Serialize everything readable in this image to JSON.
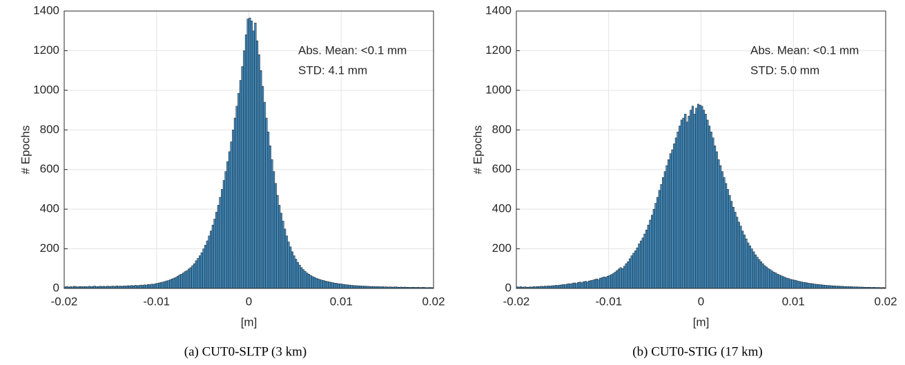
{
  "chart_data": [
    {
      "type": "histogram",
      "xlabel": "[m]",
      "ylabel": "# Epochs",
      "caption": "(a) CUT0-SLTP (3 km)",
      "annotations": [
        "Abs. Mean: <0.1 mm",
        "STD: 4.1 mm"
      ],
      "color": "#3f88bb",
      "edgecolor": "#1a1a1a",
      "grid": true,
      "xlim": [
        -0.02,
        0.02
      ],
      "xticks": [
        -0.02,
        -0.01,
        0,
        0.01,
        0.02
      ],
      "ylim": [
        0,
        1400
      ],
      "yticks": [
        0,
        200,
        400,
        600,
        800,
        1000,
        1200,
        1400
      ],
      "bins": [
        -0.02,
        -0.0198,
        -0.0196,
        -0.0194,
        -0.0192,
        -0.019,
        -0.0188,
        -0.0186,
        -0.0184,
        -0.0182,
        -0.018,
        -0.0178,
        -0.0176,
        -0.0174,
        -0.0172,
        -0.017,
        -0.0168,
        -0.0166,
        -0.0164,
        -0.0162,
        -0.016,
        -0.0158,
        -0.0156,
        -0.0154,
        -0.0152,
        -0.015,
        -0.0148,
        -0.0146,
        -0.0144,
        -0.0142,
        -0.014,
        -0.0138,
        -0.0136,
        -0.0134,
        -0.0132,
        -0.013,
        -0.0128,
        -0.0126,
        -0.0124,
        -0.0122,
        -0.012,
        -0.0118,
        -0.0116,
        -0.0114,
        -0.0112,
        -0.011,
        -0.0108,
        -0.0106,
        -0.0104,
        -0.0102,
        -0.01,
        -0.0098,
        -0.0096,
        -0.0094,
        -0.0092,
        -0.009,
        -0.0088,
        -0.0086,
        -0.0084,
        -0.0082,
        -0.008,
        -0.0078,
        -0.0076,
        -0.0074,
        -0.0072,
        -0.007,
        -0.0068,
        -0.0066,
        -0.0064,
        -0.0062,
        -0.006,
        -0.0058,
        -0.0056,
        -0.0054,
        -0.0052,
        -0.005,
        -0.0048,
        -0.0046,
        -0.0044,
        -0.0042,
        -0.004,
        -0.0038,
        -0.0036,
        -0.0034,
        -0.0032,
        -0.003,
        -0.0028,
        -0.0026,
        -0.0024,
        -0.0022,
        -0.002,
        -0.0018,
        -0.0016,
        -0.0014,
        -0.0012,
        -0.001,
        -0.0008,
        -0.0006,
        -0.0004,
        -0.0002,
        0,
        0.0002,
        0.0004,
        0.0006,
        0.0008,
        0.001,
        0.0012,
        0.0014,
        0.0016,
        0.0018,
        0.002,
        0.0022,
        0.0024,
        0.0026,
        0.0028,
        0.003,
        0.0032,
        0.0034,
        0.0036,
        0.0038,
        0.004,
        0.0042,
        0.0044,
        0.0046,
        0.0048,
        0.005,
        0.0052,
        0.0054,
        0.0056,
        0.0058,
        0.006,
        0.0062,
        0.0064,
        0.0066,
        0.0068,
        0.007,
        0.0072,
        0.0074,
        0.0076,
        0.0078,
        0.008,
        0.0082,
        0.0084,
        0.0086,
        0.0088,
        0.009,
        0.0092,
        0.0094,
        0.0096,
        0.0098,
        0.01,
        0.0102,
        0.0104,
        0.0106,
        0.0108,
        0.011,
        0.0112,
        0.0114,
        0.0116,
        0.0118,
        0.012,
        0.0122,
        0.0124,
        0.0126,
        0.0128,
        0.013,
        0.0132,
        0.0134,
        0.0136,
        0.0138,
        0.014,
        0.0142,
        0.0144,
        0.0146,
        0.0148,
        0.015,
        0.0152,
        0.0154,
        0.0156,
        0.0158,
        0.016,
        0.0162,
        0.0164,
        0.0166,
        0.0168,
        0.017,
        0.0172,
        0.0174,
        0.0176,
        0.0178,
        0.018,
        0.0182,
        0.0184,
        0.0186,
        0.0188,
        0.019,
        0.0192,
        0.0194,
        0.0196,
        0.0198,
        0.02
      ],
      "counts": [
        8,
        10,
        7,
        9,
        8,
        11,
        9,
        8,
        10,
        9,
        9,
        10,
        8,
        11,
        9,
        10,
        12,
        9,
        10,
        11,
        10,
        11,
        9,
        12,
        10,
        11,
        12,
        10,
        13,
        11,
        12,
        11,
        13,
        12,
        14,
        13,
        15,
        13,
        16,
        14,
        15,
        17,
        16,
        18,
        17,
        20,
        19,
        22,
        21,
        24,
        26,
        28,
        30,
        32,
        35,
        38,
        40,
        44,
        48,
        52,
        56,
        62,
        68,
        72,
        78,
        85,
        90,
        98,
        105,
        115,
        125,
        140,
        152,
        165,
        180,
        200,
        218,
        240,
        265,
        290,
        320,
        350,
        385,
        420,
        460,
        500,
        545,
        590,
        640,
        690,
        740,
        800,
        860,
        920,
        985,
        1050,
        1120,
        1200,
        1280,
        1360,
        1365,
        1350,
        1300,
        1340,
        1250,
        1180,
        1100,
        1020,
        940,
        860,
        790,
        720,
        650,
        590,
        530,
        470,
        420,
        380,
        340,
        300,
        265,
        235,
        210,
        185,
        165,
        148,
        132,
        118,
        105,
        95,
        86,
        78,
        72,
        66,
        60,
        56,
        52,
        48,
        45,
        42,
        40,
        37,
        35,
        33,
        31,
        29,
        27,
        26,
        24,
        23,
        22,
        20,
        19,
        18,
        17,
        16,
        15,
        14,
        14,
        13,
        13,
        12,
        12,
        11,
        11,
        10,
        10,
        10,
        9,
        9,
        9,
        8,
        9,
        8,
        8,
        7,
        8,
        7,
        7,
        8,
        7,
        6,
        7,
        6,
        7,
        6,
        6,
        5,
        6,
        6,
        5,
        6,
        5,
        5,
        6,
        5,
        4,
        5,
        5,
        4
      ]
    },
    {
      "type": "histogram",
      "xlabel": "[m]",
      "ylabel": "# Epochs",
      "caption": "(b) CUT0-STIG (17 km)",
      "annotations": [
        "Abs. Mean: <0.1 mm",
        "STD: 5.0 mm"
      ],
      "color": "#3f88bb",
      "edgecolor": "#1a1a1a",
      "grid": true,
      "xlim": [
        -0.02,
        0.02
      ],
      "xticks": [
        -0.02,
        -0.01,
        0,
        0.01,
        0.02
      ],
      "ylim": [
        0,
        1400
      ],
      "yticks": [
        0,
        200,
        400,
        600,
        800,
        1000,
        1200,
        1400
      ],
      "bins": [
        -0.02,
        -0.0198,
        -0.0196,
        -0.0194,
        -0.0192,
        -0.019,
        -0.0188,
        -0.0186,
        -0.0184,
        -0.0182,
        -0.018,
        -0.0178,
        -0.0176,
        -0.0174,
        -0.0172,
        -0.017,
        -0.0168,
        -0.0166,
        -0.0164,
        -0.0162,
        -0.016,
        -0.0158,
        -0.0156,
        -0.0154,
        -0.0152,
        -0.015,
        -0.0148,
        -0.0146,
        -0.0144,
        -0.0142,
        -0.014,
        -0.0138,
        -0.0136,
        -0.0134,
        -0.0132,
        -0.013,
        -0.0128,
        -0.0126,
        -0.0124,
        -0.0122,
        -0.012,
        -0.0118,
        -0.0116,
        -0.0114,
        -0.0112,
        -0.011,
        -0.0108,
        -0.0106,
        -0.0104,
        -0.0102,
        -0.01,
        -0.0098,
        -0.0096,
        -0.0094,
        -0.0092,
        -0.009,
        -0.0088,
        -0.0086,
        -0.0084,
        -0.0082,
        -0.008,
        -0.0078,
        -0.0076,
        -0.0074,
        -0.0072,
        -0.007,
        -0.0068,
        -0.0066,
        -0.0064,
        -0.0062,
        -0.006,
        -0.0058,
        -0.0056,
        -0.0054,
        -0.0052,
        -0.005,
        -0.0048,
        -0.0046,
        -0.0044,
        -0.0042,
        -0.004,
        -0.0038,
        -0.0036,
        -0.0034,
        -0.0032,
        -0.003,
        -0.0028,
        -0.0026,
        -0.0024,
        -0.0022,
        -0.002,
        -0.0018,
        -0.0016,
        -0.0014,
        -0.0012,
        -0.001,
        -0.0008,
        -0.0006,
        -0.0004,
        -0.0002,
        0,
        0.0002,
        0.0004,
        0.0006,
        0.0008,
        0.001,
        0.0012,
        0.0014,
        0.0016,
        0.0018,
        0.002,
        0.0022,
        0.0024,
        0.0026,
        0.0028,
        0.003,
        0.0032,
        0.0034,
        0.0036,
        0.0038,
        0.004,
        0.0042,
        0.0044,
        0.0046,
        0.0048,
        0.005,
        0.0052,
        0.0054,
        0.0056,
        0.0058,
        0.006,
        0.0062,
        0.0064,
        0.0066,
        0.0068,
        0.007,
        0.0072,
        0.0074,
        0.0076,
        0.0078,
        0.008,
        0.0082,
        0.0084,
        0.0086,
        0.0088,
        0.009,
        0.0092,
        0.0094,
        0.0096,
        0.0098,
        0.01,
        0.0102,
        0.0104,
        0.0106,
        0.0108,
        0.011,
        0.0112,
        0.0114,
        0.0116,
        0.0118,
        0.012,
        0.0122,
        0.0124,
        0.0126,
        0.0128,
        0.013,
        0.0132,
        0.0134,
        0.0136,
        0.0138,
        0.014,
        0.0142,
        0.0144,
        0.0146,
        0.0148,
        0.015,
        0.0152,
        0.0154,
        0.0156,
        0.0158,
        0.016,
        0.0162,
        0.0164,
        0.0166,
        0.0168,
        0.017,
        0.0172,
        0.0174,
        0.0176,
        0.0178,
        0.018,
        0.0182,
        0.0184,
        0.0186,
        0.0188,
        0.019,
        0.0192,
        0.0194,
        0.0196,
        0.0198,
        0.02
      ],
      "counts": [
        8,
        7,
        9,
        6,
        8,
        7,
        6,
        8,
        7,
        9,
        8,
        10,
        9,
        11,
        10,
        12,
        11,
        13,
        12,
        14,
        14,
        16,
        15,
        17,
        18,
        20,
        19,
        22,
        24,
        23,
        26,
        28,
        25,
        30,
        32,
        29,
        34,
        36,
        33,
        38,
        40,
        42,
        45,
        48,
        44,
        52,
        55,
        58,
        56,
        62,
        65,
        70,
        75,
        82,
        90,
        98,
        105,
        100,
        112,
        125,
        135,
        150,
        165,
        178,
        190,
        205,
        225,
        240,
        255,
        275,
        295,
        320,
        345,
        370,
        400,
        430,
        460,
        495,
        525,
        560,
        590,
        620,
        650,
        680,
        700,
        730,
        760,
        790,
        820,
        850,
        860,
        880,
        840,
        870,
        900,
        920,
        880,
        910,
        930,
        925,
        920,
        900,
        880,
        850,
        820,
        790,
        760,
        720,
        690,
        650,
        620,
        590,
        560,
        530,
        500,
        470,
        440,
        410,
        385,
        360,
        335,
        315,
        290,
        270,
        250,
        230,
        215,
        200,
        185,
        170,
        158,
        146,
        135,
        125,
        115,
        108,
        100,
        95,
        88,
        82,
        78,
        72,
        68,
        64,
        60,
        56,
        52,
        50,
        46,
        44,
        42,
        40,
        37,
        35,
        33,
        31,
        30,
        28,
        26,
        25,
        24,
        22,
        21,
        20,
        19,
        18,
        17,
        16,
        15,
        15,
        14,
        13,
        13,
        12,
        12,
        11,
        11,
        10,
        10,
        9,
        9,
        9,
        8,
        8,
        8,
        7,
        7,
        7,
        6,
        6,
        6,
        6,
        5,
        6,
        5,
        5,
        5,
        4,
        5,
        4
      ]
    }
  ]
}
